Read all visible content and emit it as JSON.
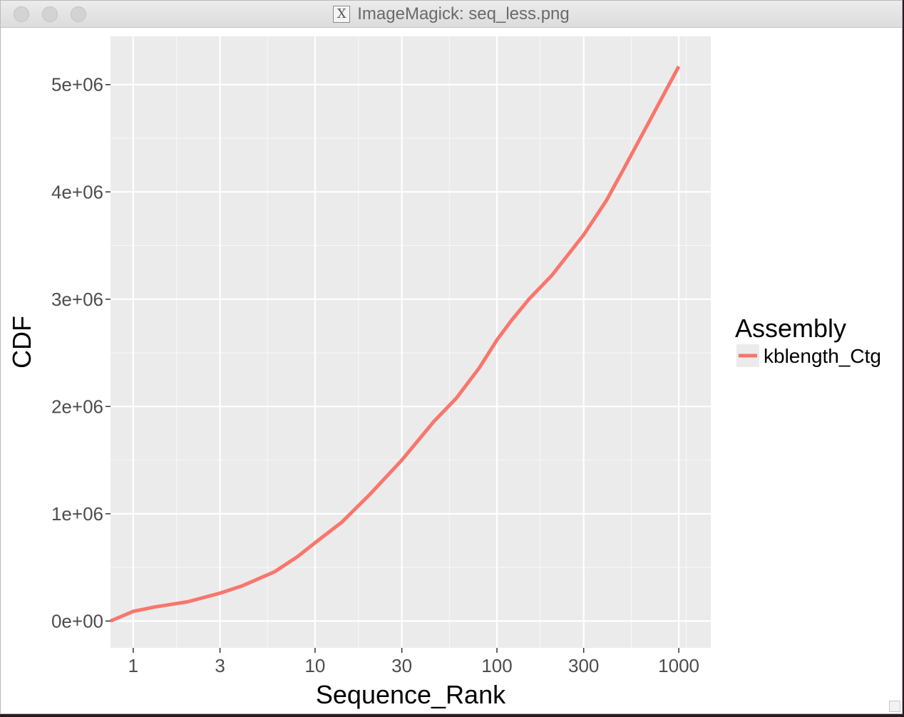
{
  "window": {
    "title": "ImageMagick: seq_less.png",
    "icon": "x11-icon"
  },
  "colors": {
    "panel": "#ebebeb",
    "grid": "#ffffff",
    "series": "#f8766d",
    "text": "#4d4d4d"
  },
  "chart_data": {
    "type": "line",
    "title": "",
    "xlabel": "Sequence_Rank",
    "ylabel": "CDF",
    "x_scale": "log10",
    "xlim": [
      0.75,
      1500
    ],
    "ylim": [
      -250000,
      5450000
    ],
    "x_ticks": [
      1,
      3,
      10,
      30,
      100,
      300,
      1000
    ],
    "x_tick_labels": [
      "1",
      "3",
      "10",
      "30",
      "100",
      "300",
      "1000"
    ],
    "y_ticks": [
      0,
      1000000,
      2000000,
      3000000,
      4000000,
      5000000
    ],
    "y_tick_labels": [
      "0e+00",
      "1e+06",
      "2e+06",
      "3e+06",
      "4e+06",
      "5e+06"
    ],
    "grid": true,
    "legend": {
      "title": "Assembly",
      "placement": "right",
      "entries": [
        "kblength_Ctg"
      ]
    },
    "series": [
      {
        "name": "kblength_Ctg",
        "x": [
          0.75,
          1,
          1.3,
          2,
          3,
          4,
          6,
          8,
          10,
          14,
          20,
          30,
          45,
          60,
          80,
          100,
          120,
          150,
          200,
          300,
          400,
          500,
          700,
          1000
        ],
        "y": [
          0,
          90000,
          130000,
          180000,
          260000,
          330000,
          460000,
          600000,
          730000,
          920000,
          1180000,
          1500000,
          1860000,
          2080000,
          2360000,
          2620000,
          2800000,
          3000000,
          3220000,
          3600000,
          3920000,
          4220000,
          4680000,
          5170000
        ]
      }
    ]
  }
}
